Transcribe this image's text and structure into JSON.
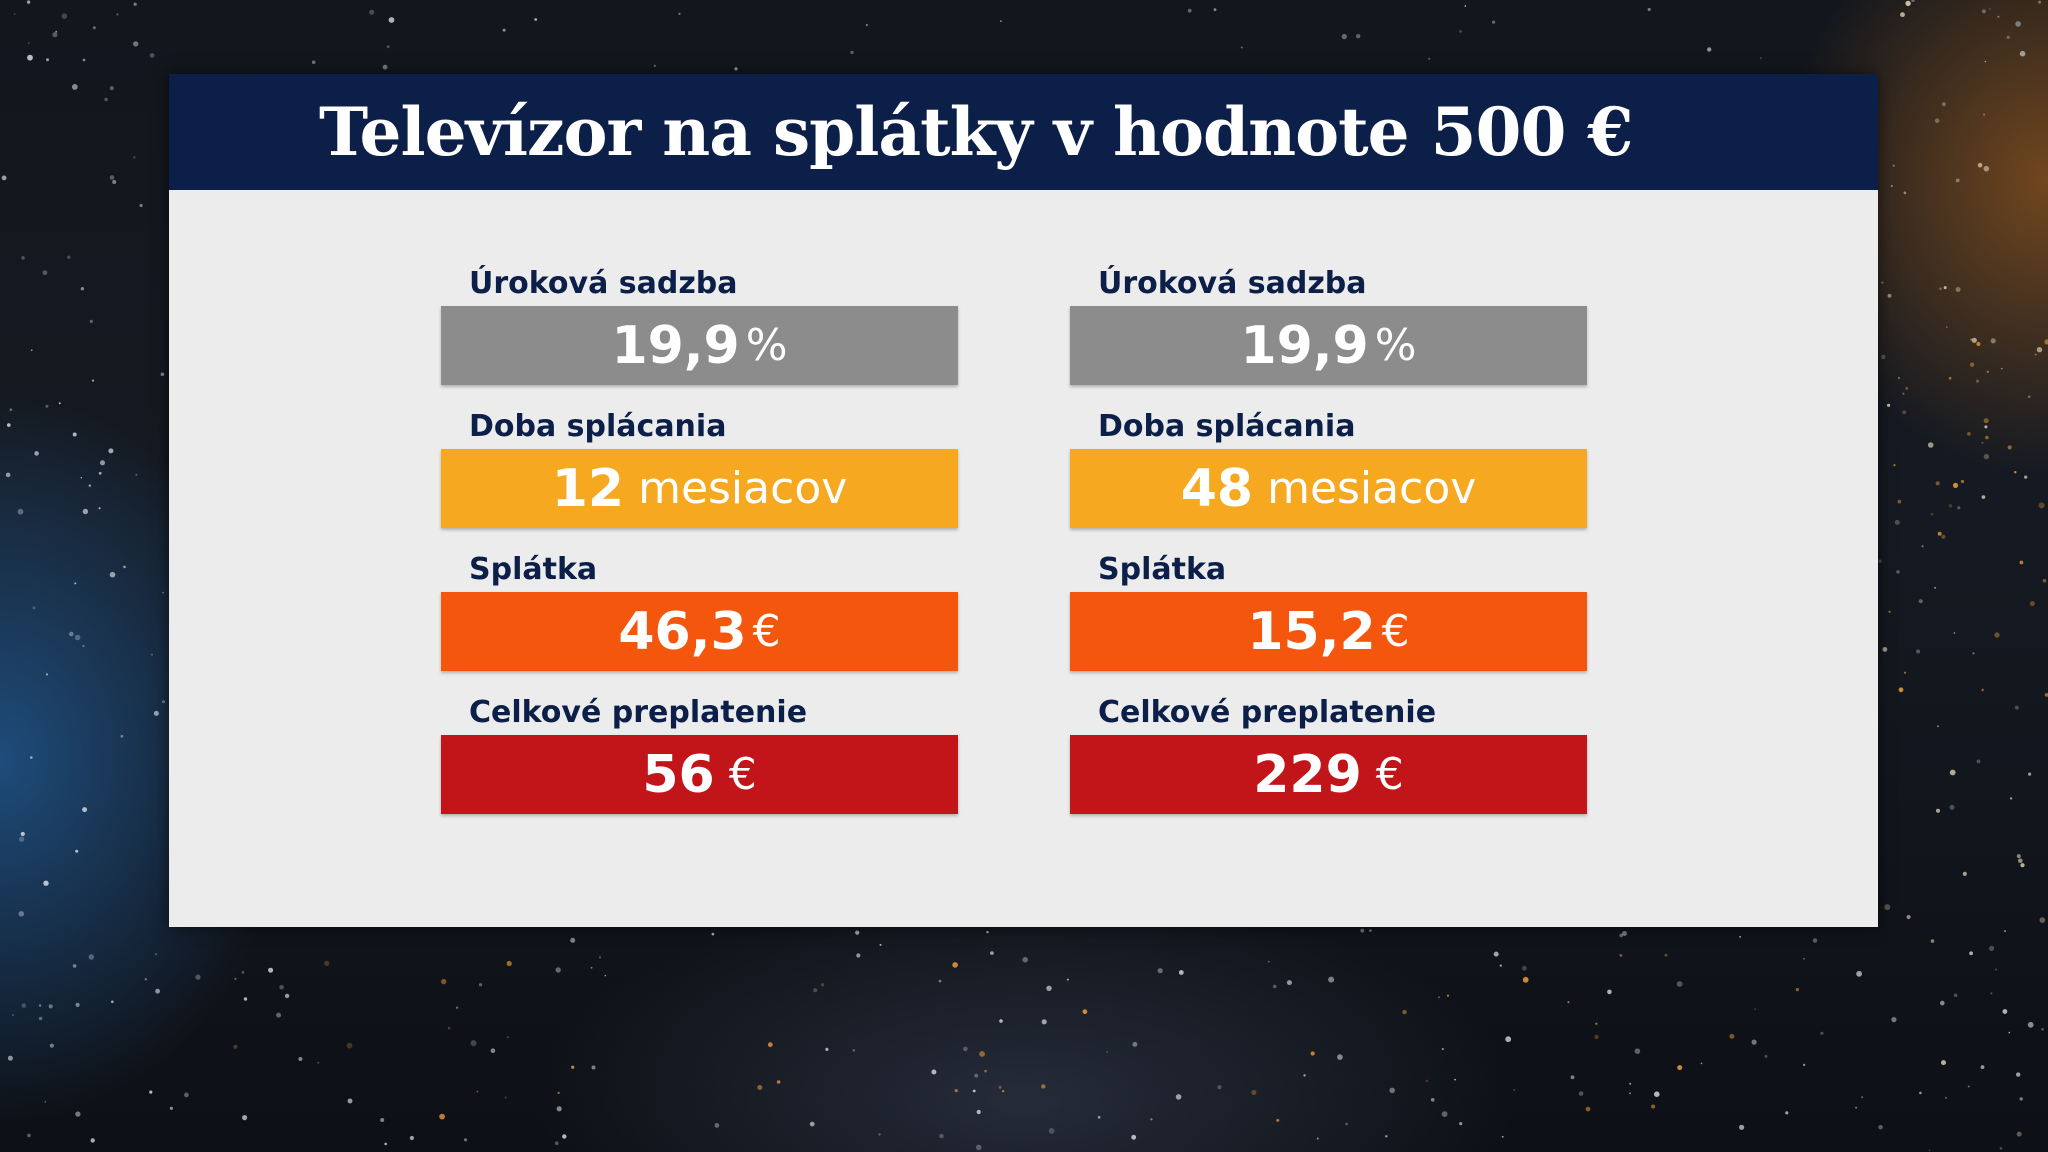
{
  "title": "Televízor na splátky v hodnote 500 €",
  "colors": {
    "header_bg": "#0c1f49",
    "card_bg": "#ececec",
    "label_text": "#0c1f49",
    "rate_bar": "#8c8c8c",
    "duration_bar": "#f6a820",
    "installment_bar": "#f5560e",
    "overpayment_bar": "#c1151a"
  },
  "left": {
    "rate": {
      "label": "Úroková sadzba",
      "value": "19,9",
      "unit": "%"
    },
    "duration": {
      "label": "Doba splácania",
      "value": "12",
      "unit": "mesiacov"
    },
    "installment": {
      "label": "Splátka",
      "value": "46,3",
      "unit": "€"
    },
    "overpayment": {
      "label": "Celkové preplatenie",
      "value": "56",
      "unit": "€"
    }
  },
  "right": {
    "rate": {
      "label": "Úroková sadzba",
      "value": "19,9",
      "unit": "%"
    },
    "duration": {
      "label": "Doba splácania",
      "value": "48",
      "unit": "mesiacov"
    },
    "installment": {
      "label": "Splátka",
      "value": "15,2",
      "unit": "€"
    },
    "overpayment": {
      "label": "Celkové preplatenie",
      "value": "229",
      "unit": "€"
    }
  }
}
